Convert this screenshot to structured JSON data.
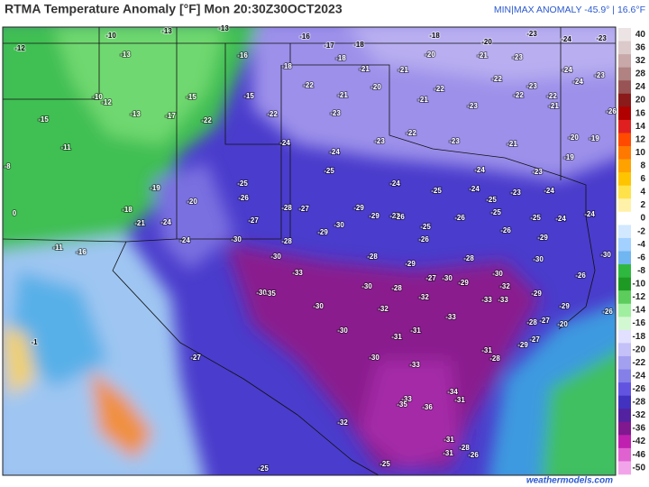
{
  "header": {
    "title": "RTMA Temperature Anomaly [°F]  Mon 20:30Z30OCT2023",
    "range_label": "MIN|MAX ANOMALY -45.9° | 16.6°F"
  },
  "footer": {
    "credit": "weathermodels.com"
  },
  "colorbar": {
    "ticks": [
      40,
      36,
      32,
      28,
      24,
      20,
      16,
      14,
      12,
      10,
      8,
      6,
      4,
      2,
      0,
      -2,
      -4,
      -6,
      -8,
      -10,
      -12,
      -14,
      -16,
      -18,
      -20,
      -22,
      -24,
      -26,
      -28,
      -32,
      -36,
      -42,
      -46,
      -50
    ],
    "colors": [
      "#ece4e4",
      "#dccaca",
      "#c8a8a8",
      "#b08282",
      "#985454",
      "#8b1a1a",
      "#b00000",
      "#e02020",
      "#ff4a00",
      "#ff7800",
      "#ffa200",
      "#ffc400",
      "#ffe24a",
      "#fff2a8",
      "#ffffff",
      "#d2e8ff",
      "#a2d0ff",
      "#70b6f0",
      "#2eb840",
      "#1e9a24",
      "#5ccc5c",
      "#a0eea0",
      "#d2f8d2",
      "#e2e0ff",
      "#c4c0f8",
      "#a4a0f0",
      "#8480e8",
      "#6254e0",
      "#4232c0",
      "#5222a0",
      "#801890",
      "#c020b0",
      "#e062d0",
      "#f2a4ea"
    ]
  },
  "stations": [
    -10,
    -13,
    -13,
    -16,
    -17,
    -18,
    -18,
    -20,
    -23,
    -24,
    -23,
    -12,
    -13,
    -16,
    -18,
    -20,
    -21,
    -23,
    -24,
    -23,
    -18,
    -21,
    -21,
    -22,
    -23,
    -10,
    -12,
    -15,
    -15,
    -22,
    -20,
    -21,
    -22,
    -22,
    -22,
    -24,
    -15,
    -13,
    -17,
    -22,
    -22,
    -23,
    -21,
    -23,
    -21,
    -26,
    -11,
    -24,
    -24,
    -23,
    -22,
    -23,
    -21,
    -20,
    -19,
    -8,
    -19,
    -25,
    -24,
    -23,
    -19,
    -25,
    -24,
    -25,
    -24,
    -25,
    -23,
    -24,
    0,
    -18,
    -21,
    -24,
    -20,
    -26,
    -28,
    -27,
    -29,
    -27,
    -25,
    -26,
    -25,
    -24,
    -27,
    -30,
    -29,
    -26,
    -26,
    -25,
    -24,
    -11,
    -16,
    -24,
    -30,
    -28,
    -29,
    -26,
    -29,
    -30,
    -30,
    -28,
    -29,
    -28,
    -30,
    -26,
    -33,
    -27,
    -30,
    -29,
    -30,
    -32,
    -30,
    -28,
    -30,
    -35,
    -30,
    -32,
    -32,
    -33,
    -33,
    -29,
    -29,
    -26,
    -30,
    -31,
    -31,
    -33,
    -28,
    -27,
    -20,
    -1,
    -27,
    -30,
    -31,
    -29,
    -27,
    -28,
    -33,
    -34,
    -31,
    -33,
    -36,
    -35,
    -32,
    -31,
    -28,
    -26,
    -25,
    -25,
    -31
  ]
}
